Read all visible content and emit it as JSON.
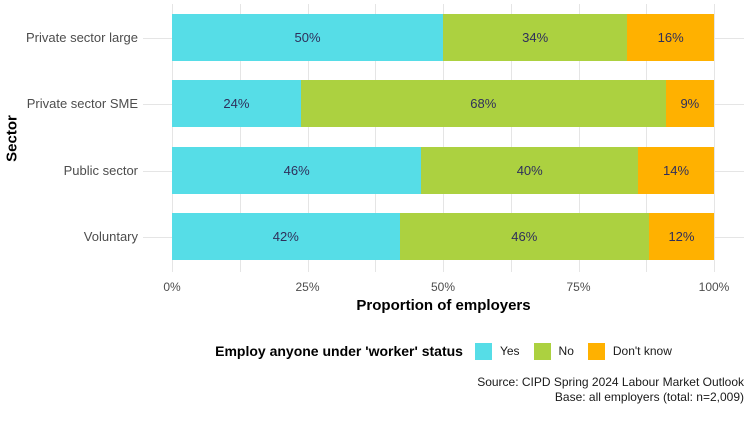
{
  "colors": {
    "yes": "#56dde7",
    "no": "#acd140",
    "dont_know": "#ffb100",
    "bar_label_text": "#2f2f5b",
    "axis_text": "#4d4d4d",
    "gridline": "#e5e5e5"
  },
  "chart_data": {
    "type": "bar",
    "orientation": "horizontal",
    "stacked": true,
    "categories": [
      "Private sector large",
      "Private sector SME",
      "Public sector",
      "Voluntary"
    ],
    "series": [
      {
        "name": "Yes",
        "color": "#56dde7",
        "values": [
          50,
          24,
          46,
          42
        ],
        "labels": [
          "50%",
          "24%",
          "46%",
          "42%"
        ]
      },
      {
        "name": "No",
        "color": "#acd140",
        "values": [
          34,
          68,
          40,
          46
        ],
        "labels": [
          "34%",
          "68%",
          "40%",
          "46%"
        ]
      },
      {
        "name": "Don't know",
        "color": "#ffb100",
        "values": [
          16,
          9,
          14,
          12
        ],
        "labels": [
          "16%",
          "9%",
          "14%",
          "12%"
        ]
      }
    ],
    "xlabel": "Proportion of employers",
    "ylabel": "Sector",
    "xlim": [
      0,
      100
    ],
    "x_major_ticks": [
      0,
      25,
      50,
      75,
      100
    ],
    "x_tick_labels": [
      "0%",
      "25%",
      "50%",
      "75%",
      "100%"
    ],
    "x_minor_ticks": [
      12.5,
      37.5,
      62.5,
      87.5
    ],
    "grid": "on",
    "legend_position": "bottom",
    "legend_title": "Employ anyone under 'worker' status",
    "caption": [
      "Source: CIPD Spring 2024 Labour Market Outlook",
      "Base: all employers (total: n=2,009)"
    ]
  }
}
